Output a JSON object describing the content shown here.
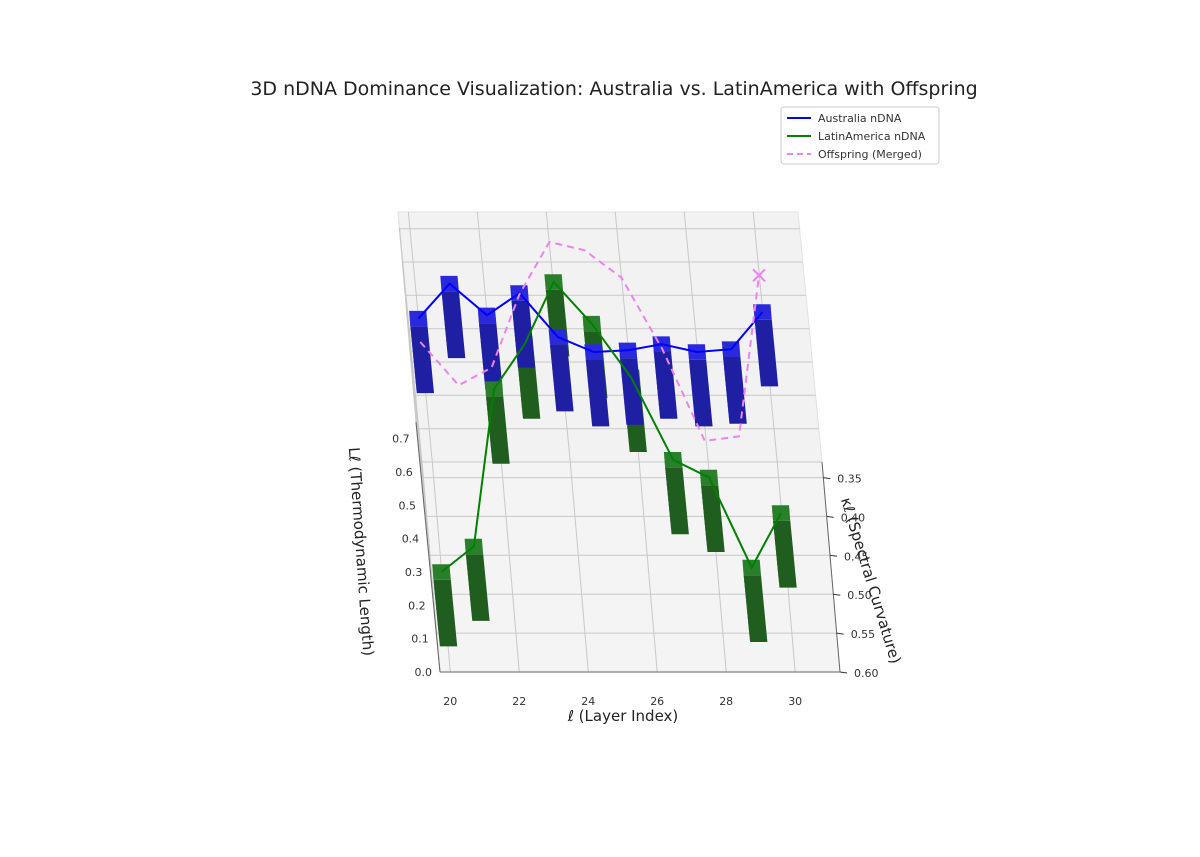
{
  "chart_data": {
    "type": "bar3d-line3d",
    "title": "3D nDNA Dominance Visualization: Australia vs. LatinAmerica with Offspring",
    "xlabel": "ℓ (Layer Index)",
    "ylabel": "κℓ (Spectral Curvature)",
    "zlabel": "Lℓ (Thermodynamic Length)",
    "xlim": [
      19.7,
      31.3
    ],
    "ylim": [
      0.33,
      0.6
    ],
    "zlim": [
      0,
      0.75
    ],
    "x_ticks": [
      "20",
      "22",
      "24",
      "26",
      "28",
      "30"
    ],
    "y_ticks": [
      "0.35",
      "0.40",
      "0.45",
      "0.50",
      "0.55",
      "0.60"
    ],
    "z_ticks": [
      "0.0",
      "0.1",
      "0.2",
      "0.3",
      "0.4",
      "0.5",
      "0.6",
      "0.7"
    ],
    "grid": true,
    "legend_position": "top-right",
    "legend": [
      {
        "label": "Australia nDNA",
        "color": "#0000ff",
        "style": "solid"
      },
      {
        "label": "LatinAmerica nDNA",
        "color": "#008000",
        "style": "solid"
      },
      {
        "label": "Offspring (Merged)",
        "color": "#ee82ee",
        "style": "dashed"
      }
    ],
    "series": [
      {
        "name": "Australia nDNA",
        "color": "#0000ff",
        "bar_color": "#1f1fa3",
        "x": [
          20,
          21,
          22,
          23,
          24,
          25,
          26,
          27,
          28,
          29,
          30
        ],
        "kappa": [
          0.36,
          0.345,
          0.36,
          0.34,
          0.375,
          0.39,
          0.405,
          0.41,
          0.42,
          0.425,
          0.36
        ],
        "length": [
          0.5,
          0.57,
          0.51,
          0.53,
          0.48,
          0.47,
          0.51,
          0.54,
          0.54,
          0.56,
          0.52
        ]
      },
      {
        "name": "LatinAmerica nDNA",
        "color": "#008000",
        "bar_color": "#1f5e1f",
        "x": [
          20,
          21,
          22,
          23,
          24,
          25,
          26,
          27,
          28,
          29,
          30
        ],
        "kappa": [
          0.51,
          0.46,
          0.365,
          0.32,
          0.24,
          0.285,
          0.32,
          0.37,
          0.41,
          0.47,
          0.46
        ],
        "length": [
          0.09,
          0.05,
          0.3,
          0.33,
          0.33,
          0.31,
          0.23,
          0.1,
          0.14,
          0.01,
          0.15
        ]
      },
      {
        "name": "Offspring (Merged)",
        "color": "#ee82ee",
        "x": [
          20,
          21,
          22,
          23,
          24,
          25,
          26,
          27,
          28,
          29,
          30
        ],
        "kappa": [
          0.39,
          0.42,
          0.41,
          0.35,
          0.3,
          0.315,
          0.35,
          0.42,
          0.5,
          0.49,
          0.36
        ],
        "length": [
          0.5,
          0.44,
          0.47,
          0.55,
          0.59,
          0.6,
          0.6,
          0.55,
          0.46,
          0.45,
          0.63
        ]
      }
    ]
  }
}
